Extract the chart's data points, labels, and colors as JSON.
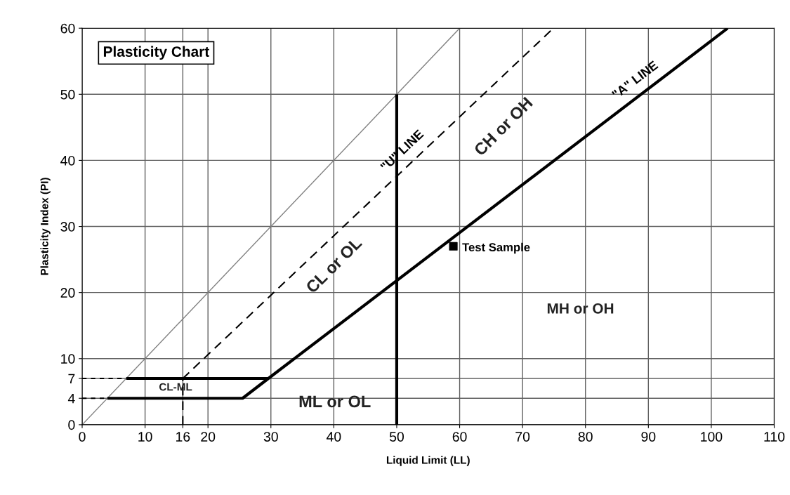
{
  "chart_data": {
    "type": "line",
    "title": "Plasticity Chart",
    "xlabel": "Liquid Limit (LL)",
    "ylabel": "Plasticity Index (PI)",
    "xlim": [
      0,
      110
    ],
    "ylim": [
      0,
      60
    ],
    "xticks": [
      0,
      10,
      16,
      20,
      30,
      40,
      50,
      60,
      70,
      80,
      90,
      100,
      110
    ],
    "yticks": [
      0,
      4,
      7,
      10,
      20,
      30,
      40,
      50,
      60
    ],
    "grid": true,
    "legend": false,
    "series": [
      {
        "color": "#808080",
        "x": [
          0,
          60
        ],
        "values": [
          0,
          60
        ],
        "line_style": "solid"
      },
      {
        "name": "\"U\" LINE",
        "color": "#000000",
        "x": [
          16,
          74.9
        ],
        "values": [
          7,
          60
        ],
        "line_style": "dashed"
      },
      {
        "name": "\"A\" LINE",
        "color": "#000000",
        "x": [
          4,
          25.5,
          29.6,
          102.6
        ],
        "values": [
          4,
          4,
          7,
          60
        ],
        "line_style": "solid"
      },
      {
        "color": "#000000",
        "x": [
          7,
          29.6
        ],
        "values": [
          7,
          7
        ],
        "line_style": "solid"
      },
      {
        "color": "#000000",
        "x": [
          50,
          50
        ],
        "values": [
          0,
          50
        ],
        "line_style": "solid"
      },
      {
        "color": "#000000",
        "x": [
          0,
          7
        ],
        "values": [
          7,
          7
        ],
        "line_style": "dotted"
      },
      {
        "color": "#000000",
        "x": [
          0,
          4
        ],
        "values": [
          4,
          4
        ],
        "line_style": "dotted"
      },
      {
        "color": "#000000",
        "x": [
          16,
          16
        ],
        "values": [
          0,
          7
        ],
        "line_style": "dashed"
      },
      {
        "type": "scatter",
        "name": "Test Sample",
        "color": "#000000",
        "x": [
          59
        ],
        "values": [
          27
        ],
        "marker": "square"
      }
    ],
    "annotations": [
      "CL-ML",
      "ML or OL",
      "CL or OL",
      "CH or OH",
      "MH or OH"
    ]
  }
}
